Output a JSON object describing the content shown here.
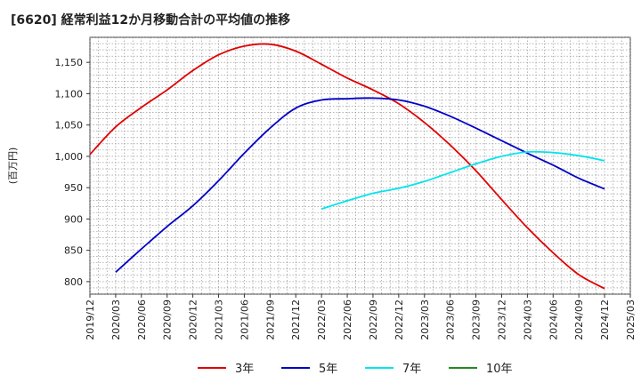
{
  "title": "[6620]  経常利益12か月移動合計の平均値の推移",
  "chart_data": {
    "type": "line",
    "title": "[6620]  経常利益12か月移動合計の平均値の推移",
    "ylabel": "(百万円)",
    "xlabel": "",
    "ylim": [
      780,
      1190
    ],
    "yticks": [
      800,
      850,
      900,
      950,
      1000,
      1050,
      1100,
      1150
    ],
    "ytick_labels": [
      "800",
      "850",
      "900",
      "950",
      "1,000",
      "1,050",
      "1,100",
      "1,150"
    ],
    "xticks": [
      "2019/12",
      "2020/03",
      "2020/06",
      "2020/09",
      "2020/12",
      "2021/03",
      "2021/06",
      "2021/09",
      "2021/12",
      "2022/03",
      "2022/06",
      "2022/09",
      "2022/12",
      "2023/03",
      "2023/06",
      "2023/09",
      "2023/12",
      "2024/03",
      "2024/06",
      "2024/09",
      "2024/12",
      "2025/03"
    ],
    "grid": true,
    "legend_position": "bottom",
    "series": [
      {
        "name": "3年",
        "color": "#e00000",
        "x": [
          "2019/12",
          "2020/03",
          "2020/06",
          "2020/09",
          "2020/12",
          "2021/03",
          "2021/06",
          "2021/09",
          "2021/12",
          "2022/03",
          "2022/06",
          "2022/09",
          "2022/12",
          "2023/03",
          "2023/06",
          "2023/09",
          "2023/12",
          "2024/03",
          "2024/06",
          "2024/09",
          "2024/12"
        ],
        "values": [
          1003,
          1047,
          1078,
          1106,
          1137,
          1162,
          1176,
          1179,
          1168,
          1147,
          1125,
          1106,
          1084,
          1054,
          1018,
          977,
          931,
          886,
          846,
          811,
          789
        ]
      },
      {
        "name": "5年",
        "color": "#0000c8",
        "x": [
          "2020/03",
          "2020/06",
          "2020/09",
          "2020/12",
          "2021/03",
          "2021/06",
          "2021/09",
          "2021/12",
          "2022/03",
          "2022/06",
          "2022/09",
          "2022/12",
          "2023/03",
          "2023/06",
          "2023/09",
          "2023/12",
          "2024/03",
          "2024/06",
          "2024/09",
          "2024/12"
        ],
        "values": [
          815,
          852,
          888,
          921,
          961,
          1005,
          1045,
          1077,
          1090,
          1092,
          1093,
          1090,
          1080,
          1064,
          1045,
          1025,
          1005,
          986,
          965,
          948
        ]
      },
      {
        "name": "7年",
        "color": "#00e5ee",
        "x": [
          "2022/03",
          "2022/06",
          "2022/09",
          "2022/12",
          "2023/03",
          "2023/06",
          "2023/09",
          "2023/12",
          "2024/03",
          "2024/06",
          "2024/09",
          "2024/12"
        ],
        "values": [
          916,
          929,
          941,
          949,
          960,
          974,
          988,
          1000,
          1007,
          1006,
          1001,
          993
        ]
      },
      {
        "name": "10年",
        "color": "#228b22",
        "x": [],
        "values": []
      }
    ]
  }
}
